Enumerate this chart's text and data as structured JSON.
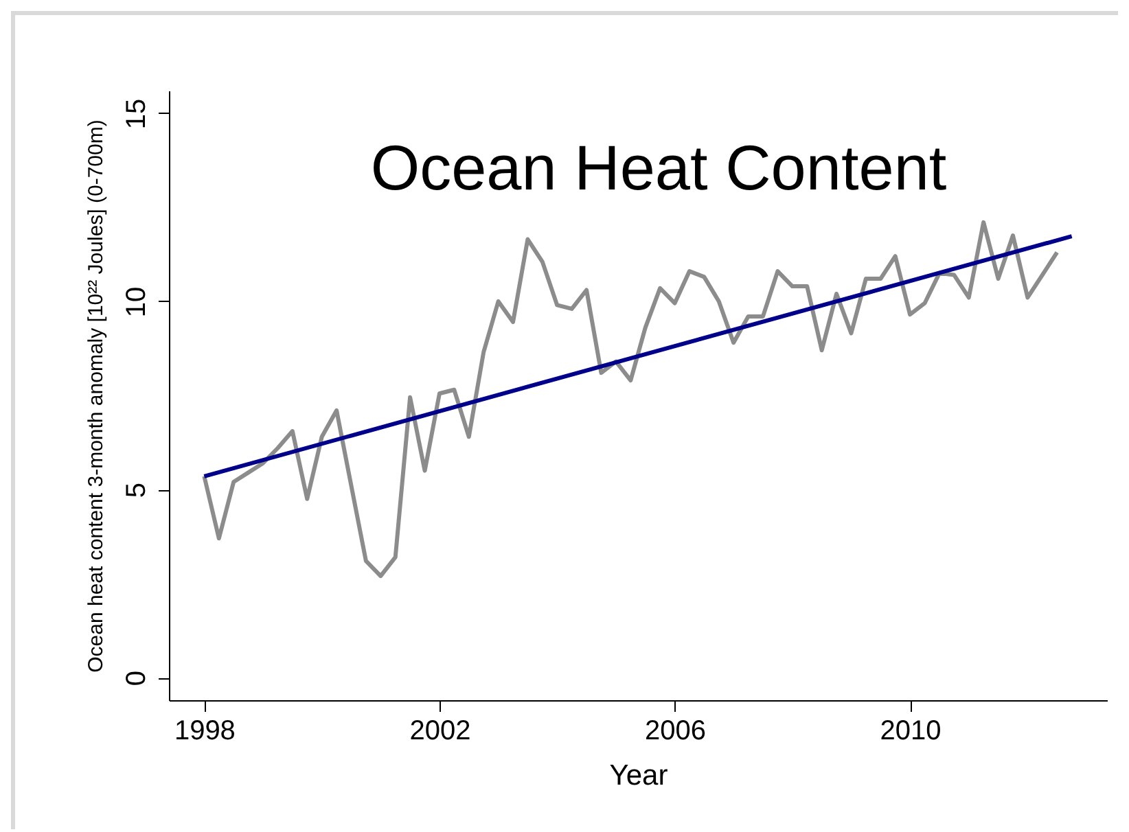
{
  "chart_data": {
    "type": "line",
    "title": "Ocean Heat Content",
    "xlabel": "Year",
    "ylabel": "Ocean heat content 3-month anomaly [10²² Joules] (0-700m)",
    "xlim": [
      1997.4,
      2013.35
    ],
    "xticks": [
      1998,
      2002,
      2006,
      2010
    ],
    "ylim": [
      -0.6,
      15.6
    ],
    "yticks": [
      0,
      5,
      10,
      15
    ],
    "grid": false,
    "marker": "none",
    "line_style": "solid",
    "x": [
      1998,
      1998.25,
      1998.5,
      1998.75,
      1999,
      1999.25,
      1999.5,
      1999.75,
      2000,
      2000.25,
      2000.5,
      2000.75,
      2001,
      2001.25,
      2001.5,
      2001.75,
      2002,
      2002.25,
      2002.5,
      2002.75,
      2003,
      2003.25,
      2003.5,
      2003.75,
      2004,
      2004.25,
      2004.5,
      2004.75,
      2005,
      2005.25,
      2005.5,
      2005.75,
      2006,
      2006.25,
      2006.5,
      2006.75,
      2007,
      2007.25,
      2007.5,
      2007.75,
      2008,
      2008.25,
      2008.5,
      2008.75,
      2009,
      2009.25,
      2009.5,
      2009.75,
      2010,
      2010.25,
      2010.5,
      2010.75,
      2011,
      2011.25,
      2011.5,
      2011.75,
      2012,
      2012.25,
      2012.5
    ],
    "series": [
      {
        "color": "#8c8c8c",
        "values": [
          5.35,
          3.7,
          5.2,
          5.45,
          5.7,
          6.1,
          6.55,
          4.75,
          6.4,
          7.1,
          5.1,
          3.1,
          2.7,
          3.2,
          7.45,
          5.5,
          7.55,
          7.65,
          6.4,
          8.65,
          10.0,
          9.45,
          11.65,
          11.05,
          9.9,
          9.8,
          10.3,
          8.1,
          8.4,
          7.9,
          9.3,
          10.35,
          9.95,
          10.8,
          10.65,
          10.0,
          8.9,
          9.6,
          9.6,
          10.8,
          10.4,
          10.4,
          8.7,
          10.2,
          9.15,
          10.6,
          10.6,
          11.2,
          9.65,
          9.95,
          10.75,
          10.7,
          10.1,
          12.1,
          10.6,
          11.75,
          10.1,
          10.7,
          11.3
        ]
      },
      {
        "type": "line",
        "color": "#00008b",
        "x": [
          1998,
          2012.75
        ],
        "values": [
          5.35,
          11.73
        ]
      }
    ]
  }
}
